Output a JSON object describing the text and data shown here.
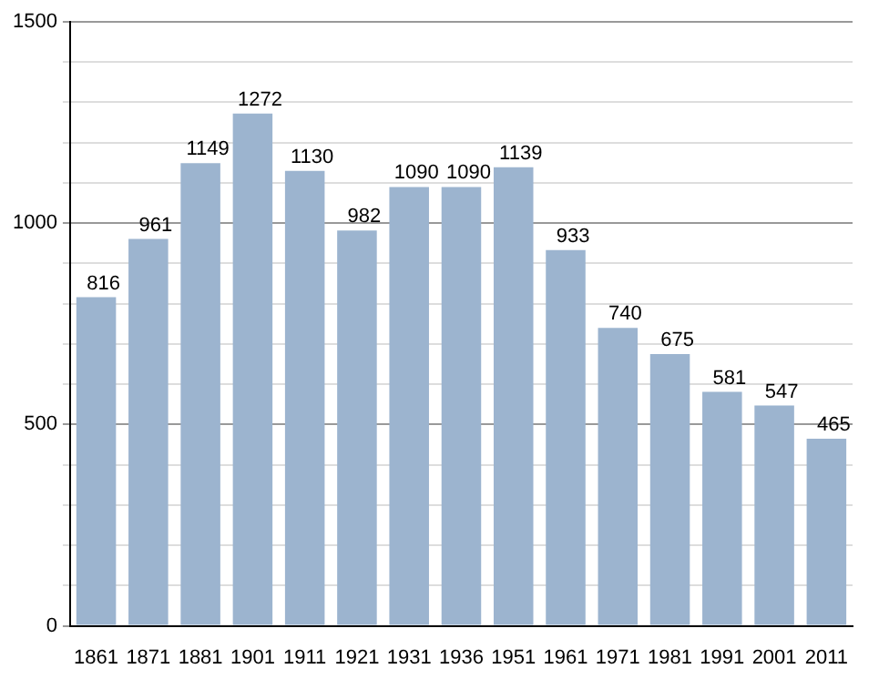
{
  "chart_data": {
    "type": "bar",
    "categories": [
      "1861",
      "1871",
      "1881",
      "1901",
      "1911",
      "1921",
      "1931",
      "1936",
      "1951",
      "1961",
      "1971",
      "1981",
      "1991",
      "2001",
      "2011"
    ],
    "values": [
      816,
      961,
      1149,
      1272,
      1130,
      982,
      1090,
      1090,
      1139,
      933,
      740,
      675,
      581,
      547,
      465
    ],
    "color": "#9cb4cf",
    "ylim": [
      0,
      1500
    ],
    "yticks": [
      0,
      {
        "value": 100,
        "label": null
      },
      {
        "value": 200,
        "label": null
      },
      {
        "value": 300,
        "label": null
      },
      {
        "value": 400,
        "label": null
      },
      500,
      {
        "value": 600,
        "label": null
      },
      {
        "value": 700,
        "label": null
      },
      {
        "value": 800,
        "label": null
      },
      {
        "value": 900,
        "label": null
      },
      1000,
      {
        "value": 1100,
        "label": null
      },
      {
        "value": 1200,
        "label": null
      },
      {
        "value": 1300,
        "label": null
      },
      {
        "value": 1400,
        "label": null
      },
      1500
    ],
    "grid": "y",
    "data_labels": true
  }
}
